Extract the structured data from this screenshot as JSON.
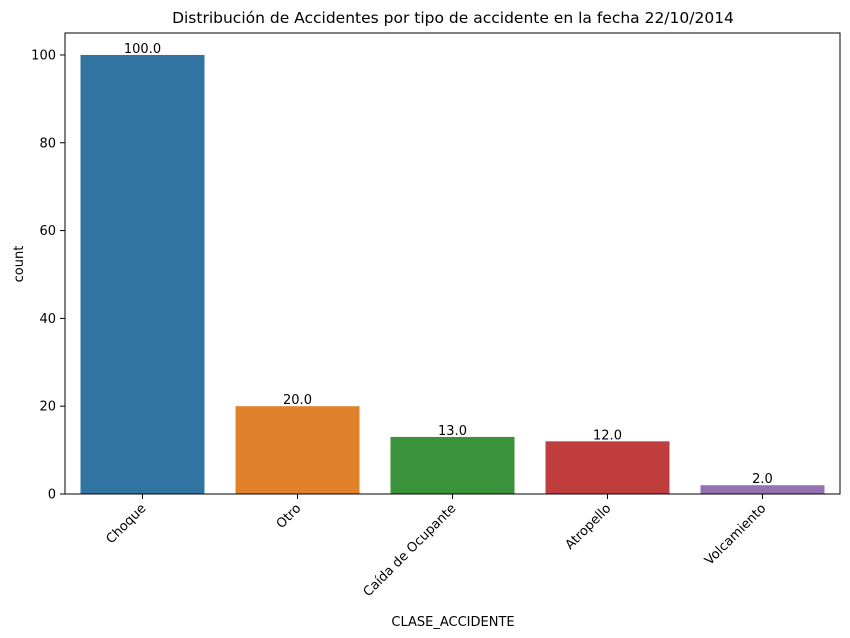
{
  "chart_data": {
    "type": "bar",
    "title": "Distribución de Accidentes por tipo de accidente en la fecha 22/10/2014",
    "xlabel": "CLASE_ACCIDENTE",
    "ylabel": "count",
    "categories": [
      "Choque",
      "Otro",
      "Caída de Ocupante",
      "Atropello",
      "Volcamiento"
    ],
    "values": [
      100,
      20,
      13,
      12,
      2
    ],
    "value_labels": [
      "100.0",
      "20.0",
      "13.0",
      "12.0",
      "2.0"
    ],
    "colors": [
      "#3274a1",
      "#e1812c",
      "#3a923a",
      "#c03d3e",
      "#9372b2"
    ],
    "ylim": [
      0,
      105
    ],
    "yticks": [
      0,
      20,
      40,
      60,
      80,
      100
    ],
    "grid": false,
    "legend": "none",
    "xtick_rotation": 45
  }
}
